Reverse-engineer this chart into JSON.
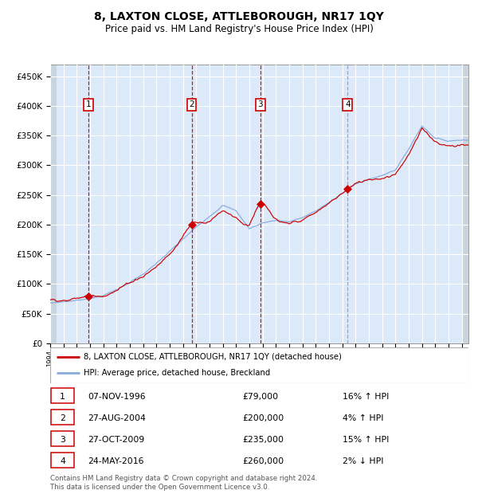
{
  "title": "8, LAXTON CLOSE, ATTLEBOROUGH, NR17 1QY",
  "subtitle": "Price paid vs. HM Land Registry's House Price Index (HPI)",
  "sales": [
    {
      "num": 1,
      "date": "07-NOV-1996",
      "year": 1996.86,
      "price": 79000,
      "hpi_pct": "16% ↑ HPI"
    },
    {
      "num": 2,
      "date": "27-AUG-2004",
      "year": 2004.65,
      "price": 200000,
      "hpi_pct": "4% ↑ HPI"
    },
    {
      "num": 3,
      "date": "27-OCT-2009",
      "year": 2009.82,
      "price": 235000,
      "hpi_pct": "15% ↑ HPI"
    },
    {
      "num": 4,
      "date": "24-MAY-2016",
      "year": 2016.4,
      "price": 260000,
      "hpi_pct": "2% ↓ HPI"
    }
  ],
  "legend_label_red": "8, LAXTON CLOSE, ATTLEBOROUGH, NR17 1QY (detached house)",
  "legend_label_blue": "HPI: Average price, detached house, Breckland",
  "footer": "Contains HM Land Registry data © Crown copyright and database right 2024.\nThis data is licensed under the Open Government Licence v3.0.",
  "ylim": [
    0,
    470000
  ],
  "yticks": [
    0,
    50000,
    100000,
    150000,
    200000,
    250000,
    300000,
    350000,
    400000,
    450000
  ],
  "xstart": 1994.0,
  "xend": 2025.5,
  "bg_color": "#dce9f8",
  "grid_color": "#ffffff",
  "red_line_color": "#cc0000",
  "blue_line_color": "#88aadd",
  "sale_marker_color": "#cc0000",
  "vline_color_red": "#cc0000",
  "vline_color_blue": "#9999bb",
  "number_box_color": "#cc0000",
  "hatch_bg": "#d0d8e0"
}
